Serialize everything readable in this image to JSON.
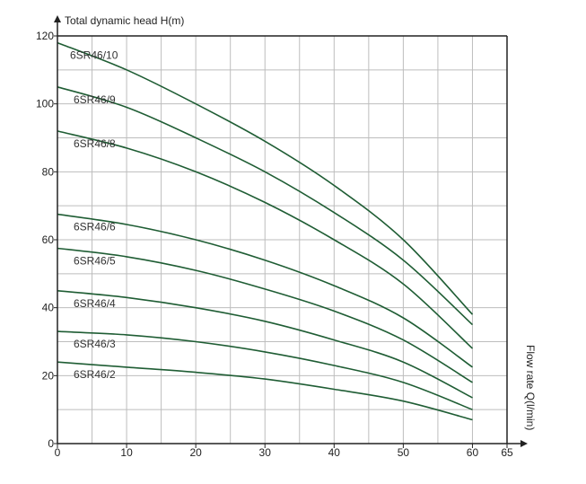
{
  "chart_data": {
    "type": "line",
    "ylabel": "Total dynamic head H(m)",
    "xlabel": "Flow rate Q(l/min)",
    "xlim": [
      0,
      65
    ],
    "ylim": [
      0,
      120
    ],
    "x_ticks": [
      0,
      10,
      20,
      30,
      40,
      50,
      60,
      65
    ],
    "y_ticks": [
      0,
      20,
      40,
      60,
      80,
      100,
      120
    ],
    "grid": true,
    "colors": {
      "curve": "#1f5d34",
      "grid": "#bdbdbd",
      "axis": "#222222"
    },
    "x": [
      0,
      10,
      20,
      30,
      40,
      50,
      60
    ],
    "series": [
      {
        "name": "6SR46/10",
        "values": [
          118,
          110,
          100,
          89,
          76,
          60,
          38
        ]
      },
      {
        "name": "6SR46/9",
        "values": [
          105,
          99,
          90,
          80,
          68,
          54,
          35
        ]
      },
      {
        "name": "6SR46/8",
        "values": [
          92,
          87,
          80,
          71,
          60,
          47,
          28
        ]
      },
      {
        "name": "6SR46/6",
        "values": [
          67.5,
          64.5,
          60,
          54,
          46.5,
          37,
          22.5
        ]
      },
      {
        "name": "6SR46/5",
        "values": [
          57.5,
          55,
          51,
          45.5,
          39,
          30.5,
          18
        ]
      },
      {
        "name": "6SR46/4",
        "values": [
          45,
          43,
          40,
          36,
          30.5,
          24,
          13.5
        ]
      },
      {
        "name": "6SR46/3",
        "values": [
          33,
          32,
          30,
          27,
          23,
          18,
          10
        ]
      },
      {
        "name": "6SR46/2",
        "values": [
          24,
          22.5,
          21,
          19,
          16,
          12.5,
          7
        ]
      }
    ]
  }
}
